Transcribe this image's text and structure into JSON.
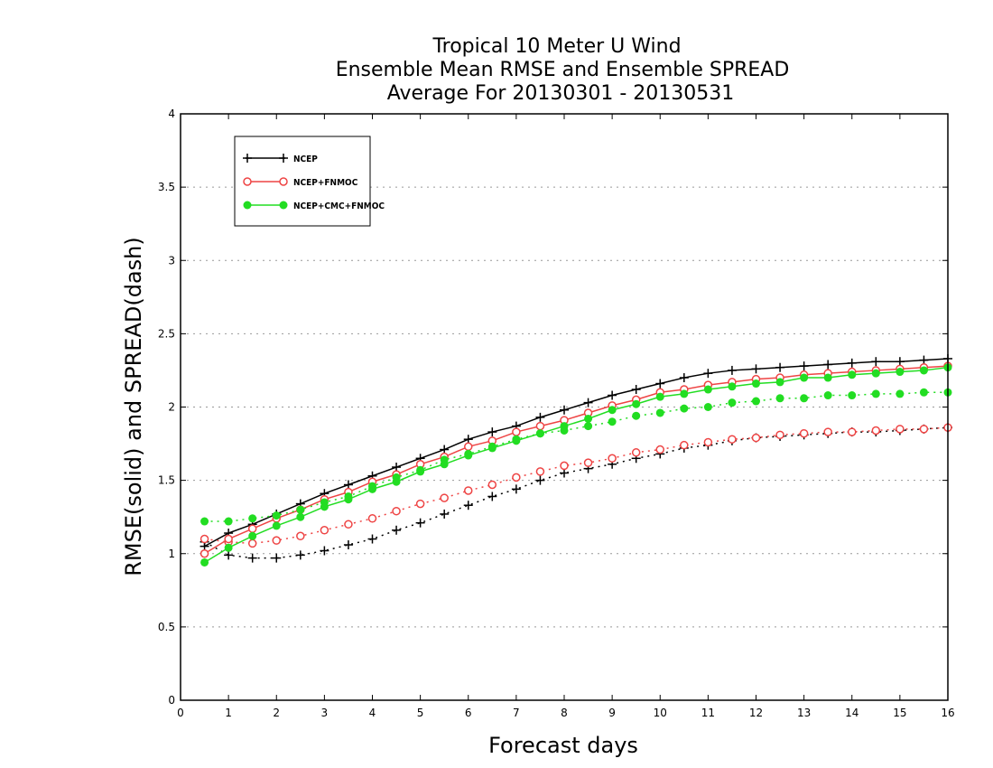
{
  "chart_data": {
    "type": "line",
    "title": [
      "Tropical 10 Meter U Wind",
      "Ensemble Mean RMSE and Ensemble SPREAD",
      "Average For 20130301 - 20130531"
    ],
    "xlabel": "Forecast days",
    "ylabel": "RMSE(solid) and SPREAD(dash)",
    "xlim": [
      0,
      16
    ],
    "ylim": [
      0,
      4
    ],
    "xticks": [
      0,
      1,
      2,
      3,
      4,
      5,
      6,
      7,
      8,
      9,
      10,
      11,
      12,
      13,
      14,
      15,
      16
    ],
    "yticks": [
      0,
      0.5,
      1,
      1.5,
      2,
      2.5,
      3,
      3.5,
      4
    ],
    "ytick_labels": [
      "0",
      "0.5",
      "1",
      "1.5",
      "2",
      "2.5",
      "3",
      "3.5",
      "4"
    ],
    "grid": "horizontal dotted",
    "legend_position": "top-left",
    "x": [
      0.5,
      1,
      1.5,
      2,
      2.5,
      3,
      3.5,
      4,
      4.5,
      5,
      5.5,
      6,
      6.5,
      7,
      7.5,
      8,
      8.5,
      9,
      9.5,
      10,
      10.5,
      11,
      11.5,
      12,
      12.5,
      13,
      13.5,
      14,
      14.5,
      15,
      15.5,
      16
    ],
    "series": [
      {
        "name": "NCEP",
        "color": "#000000",
        "marker": "plus",
        "rmse": [
          1.05,
          1.14,
          1.2,
          1.27,
          1.34,
          1.41,
          1.47,
          1.53,
          1.59,
          1.65,
          1.71,
          1.78,
          1.83,
          1.87,
          1.93,
          1.98,
          2.03,
          2.08,
          2.12,
          2.16,
          2.2,
          2.23,
          2.25,
          2.26,
          2.27,
          2.28,
          2.29,
          2.3,
          2.31,
          2.31,
          2.32,
          2.33
        ],
        "spread": [
          1.08,
          0.99,
          0.97,
          0.97,
          0.99,
          1.02,
          1.06,
          1.1,
          1.16,
          1.21,
          1.27,
          1.33,
          1.39,
          1.44,
          1.5,
          1.55,
          1.58,
          1.61,
          1.65,
          1.68,
          1.72,
          1.74,
          1.77,
          1.79,
          1.8,
          1.81,
          1.82,
          1.83,
          1.83,
          1.84,
          1.85,
          1.86
        ]
      },
      {
        "name": "NCEP+FNMOC",
        "color": "#ee4444",
        "marker": "open-circle",
        "rmse": [
          1.0,
          1.1,
          1.17,
          1.24,
          1.3,
          1.37,
          1.42,
          1.49,
          1.54,
          1.61,
          1.66,
          1.73,
          1.77,
          1.83,
          1.87,
          1.91,
          1.96,
          2.01,
          2.05,
          2.1,
          2.12,
          2.15,
          2.17,
          2.19,
          2.2,
          2.22,
          2.23,
          2.24,
          2.25,
          2.26,
          2.27,
          2.28
        ],
        "spread": [
          1.1,
          1.08,
          1.07,
          1.09,
          1.12,
          1.16,
          1.2,
          1.24,
          1.29,
          1.34,
          1.38,
          1.43,
          1.47,
          1.52,
          1.56,
          1.6,
          1.62,
          1.65,
          1.69,
          1.71,
          1.74,
          1.76,
          1.78,
          1.79,
          1.81,
          1.82,
          1.83,
          1.83,
          1.84,
          1.85,
          1.85,
          1.86
        ]
      },
      {
        "name": "NCEP+CMC+FNMOC",
        "color": "#22dd22",
        "marker": "filled-circle",
        "rmse": [
          0.94,
          1.04,
          1.12,
          1.19,
          1.25,
          1.32,
          1.37,
          1.44,
          1.49,
          1.56,
          1.61,
          1.67,
          1.72,
          1.77,
          1.82,
          1.87,
          1.92,
          1.98,
          2.02,
          2.07,
          2.09,
          2.12,
          2.14,
          2.16,
          2.17,
          2.2,
          2.2,
          2.22,
          2.23,
          2.24,
          2.25,
          2.27
        ],
        "spread": [
          1.22,
          1.22,
          1.24,
          1.26,
          1.3,
          1.35,
          1.39,
          1.46,
          1.52,
          1.57,
          1.64,
          1.68,
          1.73,
          1.78,
          1.82,
          1.84,
          1.87,
          1.9,
          1.94,
          1.96,
          1.99,
          2.0,
          2.03,
          2.04,
          2.06,
          2.06,
          2.08,
          2.08,
          2.09,
          2.09,
          2.1,
          2.1
        ]
      }
    ]
  }
}
